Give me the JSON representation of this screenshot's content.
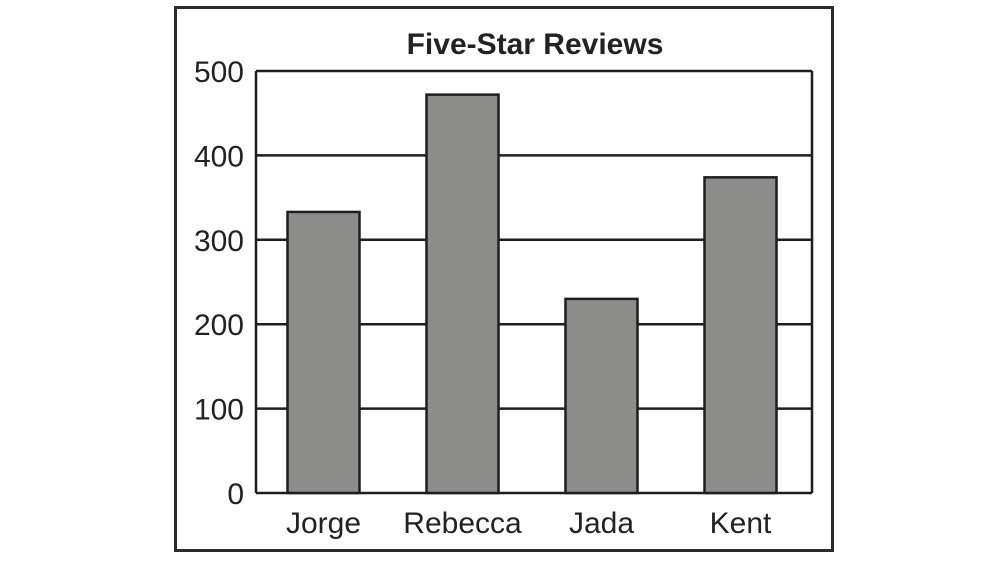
{
  "chart_data": {
    "type": "bar",
    "title": "Five-Star Reviews",
    "categories": [
      "Jorge",
      "Rebecca",
      "Jada",
      "Kent"
    ],
    "values": [
      333,
      472,
      230,
      374
    ],
    "xlabel": "",
    "ylabel": "",
    "ylim": [
      0,
      500
    ],
    "yticks": [
      "0",
      "100",
      "200",
      "300",
      "400",
      "500"
    ],
    "grid": true,
    "bar_color": "#8c8c8a",
    "line_color": "#1e1e1e"
  }
}
